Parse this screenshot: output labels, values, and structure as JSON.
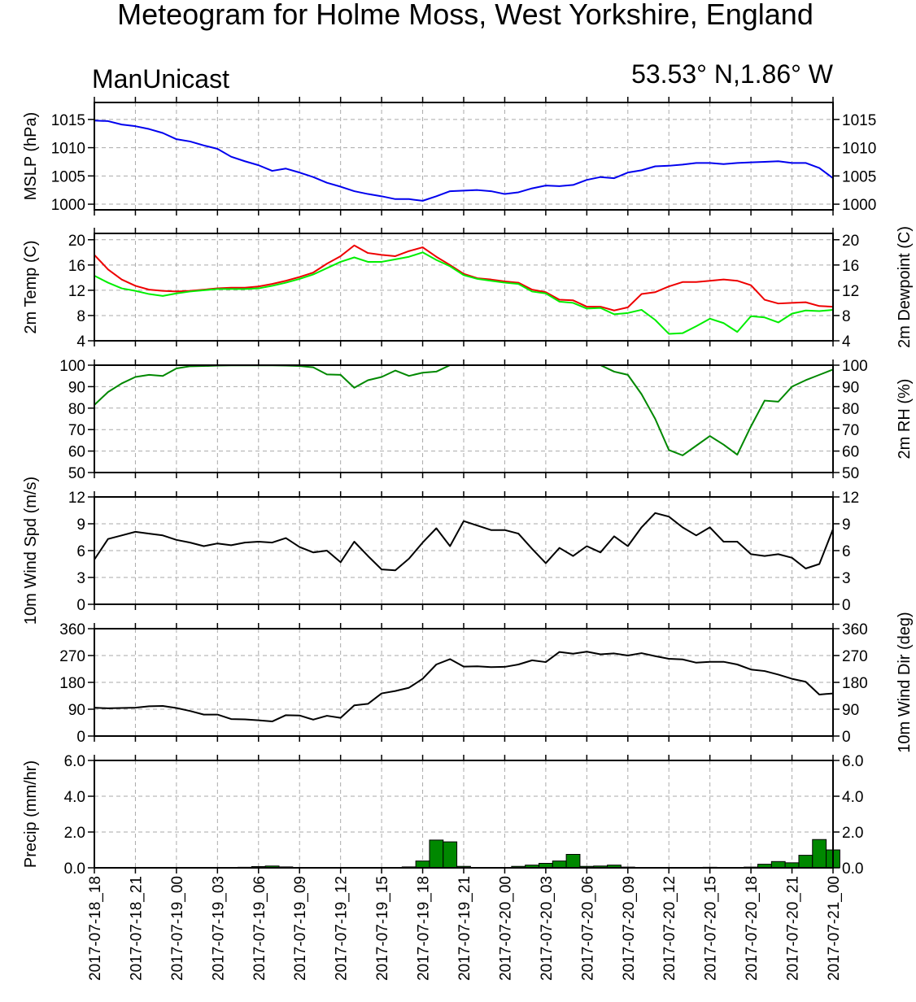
{
  "title": "Meteogram for Holme Moss, West Yorkshire, England",
  "left_subtitle": "ManUnicast",
  "right_subtitle": "53.53° N,1.86° W",
  "colors": {
    "mslp": "#0000ee",
    "temp": "#ee0000",
    "dewpoint": "#00ee00",
    "rh": "#008800",
    "wind": "#000000",
    "precip_fill": "#008800",
    "grid": "#aaaaaa"
  },
  "x_tick_labels": [
    "2017-07-18_18",
    "2017-07-18_21",
    "2017-07-19_00",
    "2017-07-19_03",
    "2017-07-19_06",
    "2017-07-19_09",
    "2017-07-19_12",
    "2017-07-19_15",
    "2017-07-19_18",
    "2017-07-19_21",
    "2017-07-20_00",
    "2017-07-20_03",
    "2017-07-20_06",
    "2017-07-20_09",
    "2017-07-20_12",
    "2017-07-20_15",
    "2017-07-20_18",
    "2017-07-20_21",
    "2017-07-21_00"
  ],
  "chart_data": [
    {
      "type": "line",
      "ylabel_left": "MSLP (hPa)",
      "ylim": [
        999,
        1018
      ],
      "yticks": [
        1000,
        1005,
        1010,
        1015
      ],
      "ytick_labels_left": [
        "1000",
        "1005",
        "1010",
        "1015"
      ],
      "ytick_labels_right": [
        "1000",
        "1005",
        "1010",
        "1015"
      ],
      "grid": true,
      "series": [
        {
          "values": [
            1014.8,
            1014.7,
            1014.1,
            1013.8,
            1013.3,
            1012.6,
            1011.5,
            1011.1,
            1010.4,
            1009.8,
            1008.4,
            1007.6,
            1006.9,
            1005.9,
            1006.3,
            1005.6,
            1004.8,
            1003.8,
            1003.1,
            1002.3,
            1001.8,
            1001.4,
            1000.9,
            1000.9,
            1000.6,
            1001.4,
            1002.3,
            1002.4,
            1002.5,
            1002.3,
            1001.8,
            1002.1,
            1002.8,
            1003.3,
            1003.2,
            1003.4,
            1004.3,
            1004.8,
            1004.6,
            1005.6,
            1006.0,
            1006.7,
            1006.8,
            1007.0,
            1007.3,
            1007.3,
            1007.1,
            1007.3,
            1007.4,
            1007.5,
            1007.6,
            1007.3,
            1007.3,
            1006.4,
            1004.6
          ]
        }
      ]
    },
    {
      "type": "line",
      "ylabel_left": "2m Temp (C)",
      "ylabel_right": "2m Dewpoint (C)",
      "ylim": [
        4,
        21
      ],
      "yticks": [
        4,
        8,
        12,
        16,
        20
      ],
      "ytick_labels_left": [
        "4",
        "8",
        "12",
        "16",
        "20"
      ],
      "ytick_labels_right": [
        "4",
        "8",
        "12",
        "16",
        "20"
      ],
      "grid": true,
      "series": [
        {
          "values": [
            17.6,
            15.3,
            13.7,
            12.7,
            12.1,
            11.9,
            11.8,
            11.9,
            12.1,
            12.3,
            12.4,
            12.4,
            12.6,
            13.0,
            13.5,
            14.1,
            14.8,
            16.2,
            17.4,
            19.1,
            17.9,
            17.6,
            17.4,
            18.2,
            18.8,
            17.3,
            16.0,
            14.6,
            13.9,
            13.7,
            13.4,
            13.2,
            12.1,
            11.7,
            10.5,
            10.4,
            9.4,
            9.4,
            8.8,
            9.3,
            11.4,
            11.7,
            12.6,
            13.3,
            13.3,
            13.5,
            13.7,
            13.5,
            12.8,
            10.5,
            9.9,
            10.0,
            10.1,
            9.5,
            9.4
          ]
        },
        {
          "values": [
            14.3,
            13.2,
            12.3,
            11.9,
            11.4,
            11.1,
            11.5,
            11.8,
            12.0,
            12.2,
            12.2,
            12.2,
            12.3,
            12.7,
            13.2,
            13.8,
            14.5,
            15.5,
            16.5,
            17.2,
            16.5,
            16.5,
            16.9,
            17.3,
            18.0,
            16.8,
            15.8,
            14.4,
            13.8,
            13.5,
            13.2,
            13.0,
            11.8,
            11.5,
            10.2,
            10.0,
            9.1,
            9.2,
            8.2,
            8.4,
            8.9,
            7.3,
            5.1,
            5.2,
            6.3,
            7.5,
            6.8,
            5.4,
            7.9,
            7.7,
            6.9,
            8.3,
            8.8,
            8.7,
            8.9
          ]
        }
      ]
    },
    {
      "type": "line",
      "ylabel_right": "2m RH (%)",
      "ylim": [
        50,
        100
      ],
      "yticks": [
        50,
        60,
        70,
        80,
        90,
        100
      ],
      "ytick_labels_left": [
        "50",
        "60",
        "70",
        "80",
        "90",
        "100"
      ],
      "ytick_labels_right": [
        "50",
        "60",
        "70",
        "80",
        "90",
        "100"
      ],
      "grid": true,
      "series": [
        {
          "values": [
            81.5,
            87.5,
            91.5,
            94.5,
            95.5,
            95.0,
            98.5,
            99.5,
            99.6,
            99.8,
            99.9,
            99.9,
            99.9,
            99.9,
            99.8,
            99.6,
            99.0,
            95.7,
            95.5,
            89.5,
            93.0,
            94.5,
            97.5,
            95.0,
            96.5,
            97.0,
            100,
            100,
            100,
            100,
            100,
            100,
            100,
            100,
            100,
            100,
            100,
            100,
            97.0,
            95.5,
            86.5,
            75.0,
            60.5,
            58.0,
            62.5,
            67.0,
            63.0,
            58.3,
            71.5,
            83.5,
            83.0,
            90.0,
            93.0,
            95.5,
            98.0
          ]
        }
      ]
    },
    {
      "type": "line",
      "ylabel_left": "10m Wind Spd (m/s)",
      "ylim": [
        0,
        12
      ],
      "yticks": [
        0,
        3,
        6,
        9,
        12
      ],
      "ytick_labels_left": [
        "0",
        "3",
        "6",
        "9",
        "12"
      ],
      "ytick_labels_right": [
        "0",
        "3",
        "6",
        "9",
        "12"
      ],
      "grid": true,
      "series": [
        {
          "values": [
            5.0,
            7.3,
            7.7,
            8.1,
            7.9,
            7.7,
            7.2,
            6.9,
            6.5,
            6.8,
            6.6,
            6.9,
            7.0,
            6.9,
            7.4,
            6.4,
            5.8,
            6.0,
            4.7,
            7.0,
            5.4,
            3.9,
            3.8,
            5.1,
            6.9,
            8.5,
            6.5,
            9.3,
            8.8,
            8.3,
            8.3,
            7.9,
            6.2,
            4.6,
            6.3,
            5.4,
            6.5,
            5.8,
            7.6,
            6.5,
            8.6,
            10.2,
            9.8,
            8.6,
            7.7,
            8.6,
            7.0,
            7.0,
            5.6,
            5.4,
            5.6,
            5.2,
            4.0,
            4.5,
            8.4
          ]
        }
      ]
    },
    {
      "type": "line",
      "ylabel_right": "10m Wind Dir (deg)",
      "ylim": [
        0,
        360
      ],
      "yticks": [
        0,
        90,
        180,
        270,
        360
      ],
      "ytick_labels_left": [
        "0",
        "90",
        "180",
        "270",
        "360"
      ],
      "ytick_labels_right": [
        "0",
        "90",
        "180",
        "270",
        "360"
      ],
      "grid": true,
      "series": [
        {
          "values": [
            95,
            93,
            94,
            95,
            100,
            101,
            94,
            84,
            72,
            72,
            57,
            56,
            53,
            49,
            70,
            69,
            55,
            68,
            61,
            103,
            108,
            143,
            151,
            162,
            192,
            240,
            258,
            233,
            234,
            231,
            232,
            240,
            254,
            248,
            282,
            276,
            283,
            274,
            277,
            270,
            278,
            268,
            259,
            257,
            246,
            249,
            249,
            240,
            223,
            218,
            206,
            192,
            182,
            139,
            143
          ]
        }
      ]
    },
    {
      "type": "bar",
      "ylabel_left": "Precip (mm/hr)",
      "ylim": [
        0,
        6
      ],
      "yticks": [
        0,
        2,
        4,
        6
      ],
      "ytick_labels_left": [
        "0.0",
        "2.0",
        "4.0",
        "6.0"
      ],
      "ytick_labels_right": [
        "0.0",
        "2.0",
        "4.0",
        "6.0"
      ],
      "grid": true,
      "series": [
        {
          "values": [
            0,
            0,
            0,
            0,
            0,
            0,
            0,
            0,
            0,
            0,
            0,
            0.03,
            0.07,
            0.1,
            0.05,
            0,
            0,
            0,
            0,
            0,
            0,
            0,
            0,
            0.05,
            0.38,
            1.55,
            1.45,
            0.08,
            0,
            0,
            0,
            0.08,
            0.15,
            0.25,
            0.38,
            0.75,
            0.08,
            0.1,
            0.15,
            0.04,
            0.02,
            0,
            0,
            0,
            0,
            0.03,
            0,
            0.02,
            0.04,
            0.2,
            0.35,
            0.28,
            0.7,
            1.58,
            1.0
          ]
        }
      ]
    }
  ]
}
